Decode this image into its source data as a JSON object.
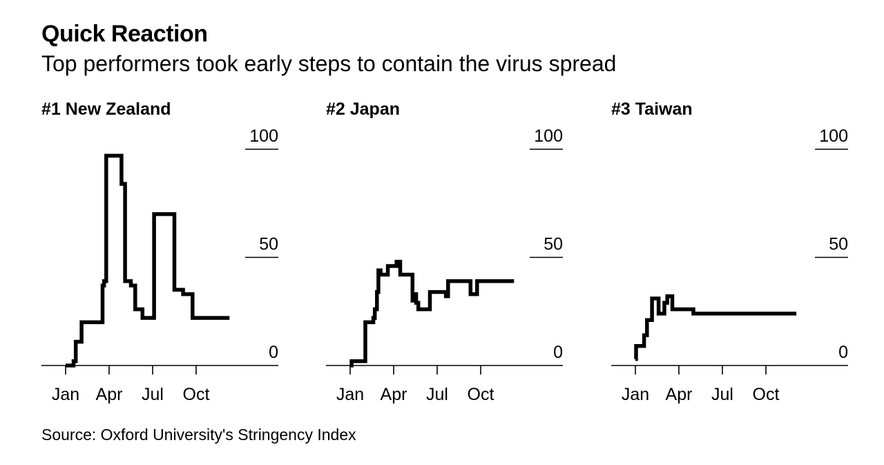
{
  "title": "Quick Reaction",
  "subtitle": "Top performers took early steps to contain the virus spread",
  "source": "Source: Oxford University's Stringency Index",
  "chart_data": [
    {
      "type": "line",
      "title": "#1 New Zealand",
      "ylim": [
        0,
        100
      ],
      "yticks": [
        "100",
        "50",
        "0"
      ],
      "xticks": [
        "Jan",
        "Apr",
        "Jul",
        "Oct"
      ],
      "x_unit": "month",
      "x": [
        0,
        0.55,
        0.55,
        0.7,
        0.7,
        1.1,
        1.1,
        2.55,
        2.55,
        2.65,
        2.65,
        2.8,
        2.8,
        3.85,
        3.85,
        4.1,
        4.1,
        4.5,
        4.5,
        4.8,
        4.8,
        5.3,
        5.3,
        6.1,
        6.1,
        7.5,
        7.5,
        8.1,
        8.1,
        8.75,
        8.75,
        9.5,
        9.5,
        11.3
      ],
      "y": [
        0,
        0,
        2,
        2,
        11,
        11,
        20,
        20,
        37,
        37,
        39,
        39,
        97,
        97,
        84,
        84,
        39,
        39,
        37,
        37,
        26,
        26,
        22,
        22,
        70,
        70,
        35,
        35,
        33,
        33,
        22,
        22,
        22,
        22
      ]
    },
    {
      "type": "line",
      "title": "#2 Japan",
      "ylim": [
        0,
        100
      ],
      "yticks": [
        "100",
        "50",
        "0"
      ],
      "xticks": [
        "Jan",
        "Apr",
        "Jul",
        "Oct"
      ],
      "x_unit": "month",
      "x": [
        0,
        0.1,
        0.1,
        1.05,
        1.05,
        1.6,
        1.6,
        1.7,
        1.7,
        1.85,
        1.85,
        1.95,
        1.95,
        2.1,
        2.1,
        2.6,
        2.6,
        3.2,
        3.2,
        3.45,
        3.45,
        4.3,
        4.3,
        4.5,
        4.5,
        4.55,
        4.55,
        4.7,
        4.7,
        5.5,
        5.5,
        6.6,
        6.6,
        6.75,
        6.75,
        8.3,
        8.3,
        8.75,
        8.75,
        9.5,
        9.5,
        10.05,
        10.05,
        11.3
      ],
      "y": [
        0,
        0,
        2,
        2,
        20,
        20,
        22,
        22,
        26,
        26,
        34,
        34,
        44,
        44,
        42,
        42,
        46,
        46,
        48,
        48,
        42,
        42,
        30,
        30,
        33,
        33,
        29,
        29,
        26,
        26,
        34,
        34,
        32,
        32,
        39,
        39,
        33,
        33,
        39,
        39,
        39,
        39,
        39,
        39
      ]
    },
    {
      "type": "line",
      "title": "#3 Taiwan",
      "ylim": [
        0,
        100
      ],
      "yticks": [
        "100",
        "50",
        "0"
      ],
      "xticks": [
        "Jan",
        "Apr",
        "Jul",
        "Oct"
      ],
      "x_unit": "month",
      "x": [
        0,
        0.05,
        0.05,
        0.6,
        0.6,
        0.8,
        0.8,
        1.15,
        1.15,
        1.6,
        1.6,
        2.0,
        2.0,
        2.05,
        2.05,
        2.2,
        2.2,
        2.55,
        2.55,
        4.0,
        4.0,
        5.7,
        5.7,
        11.1
      ],
      "y": [
        3,
        3,
        9,
        9,
        14,
        14,
        21,
        21,
        31,
        31,
        24,
        24,
        29,
        29,
        29,
        29,
        32,
        32,
        26,
        26,
        24,
        24,
        24,
        24
      ]
    }
  ]
}
